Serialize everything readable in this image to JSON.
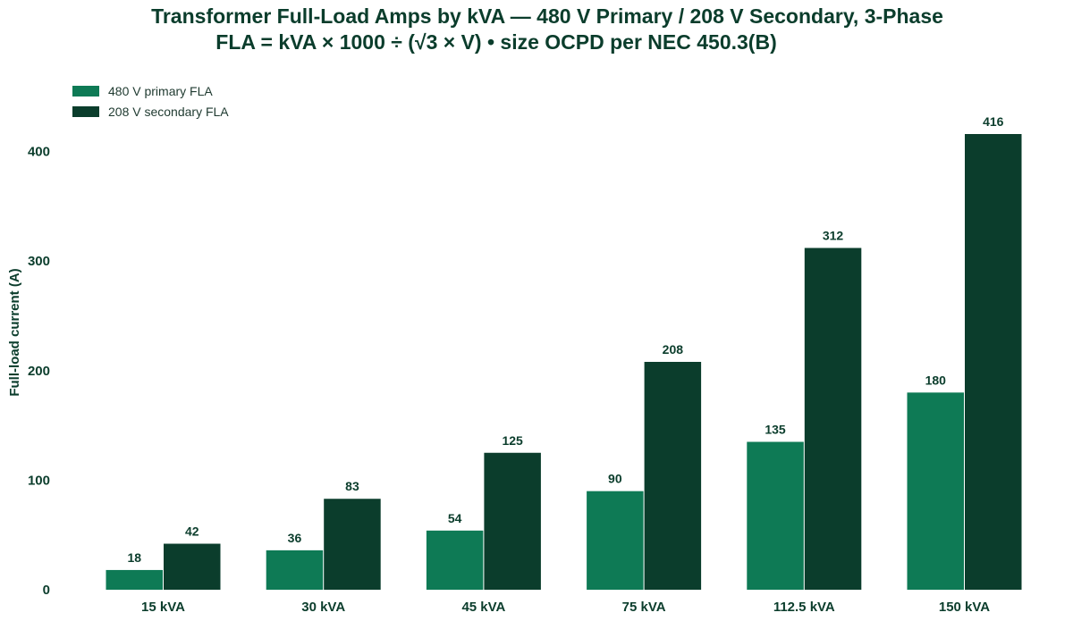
{
  "chart_data": {
    "type": "bar",
    "title": "Transformer Full-Load Amps by kVA — 480 V Primary / 208 V Secondary, 3-Phase",
    "subtitle": "FLA = kVA × 1000 ÷ (√3 × V)  •  size OCPD per NEC 450.3(B)",
    "xlabel": "",
    "ylabel": "Full-load current (A)",
    "categories": [
      "15 kVA",
      "30 kVA",
      "45 kVA",
      "75 kVA",
      "112.5 kVA",
      "150 kVA"
    ],
    "series": [
      {
        "name": "480 V primary FLA",
        "color": "#0e7a55",
        "values": [
          18,
          36,
          54,
          90,
          135,
          180
        ]
      },
      {
        "name": "208 V secondary FLA",
        "color": "#0b3d2c",
        "values": [
          42,
          83,
          125,
          208,
          312,
          416
        ]
      }
    ],
    "ylim": [
      0,
      430
    ],
    "yticks": [
      0,
      100,
      200,
      300,
      400
    ],
    "grid": false,
    "legend_position": "top-left"
  }
}
